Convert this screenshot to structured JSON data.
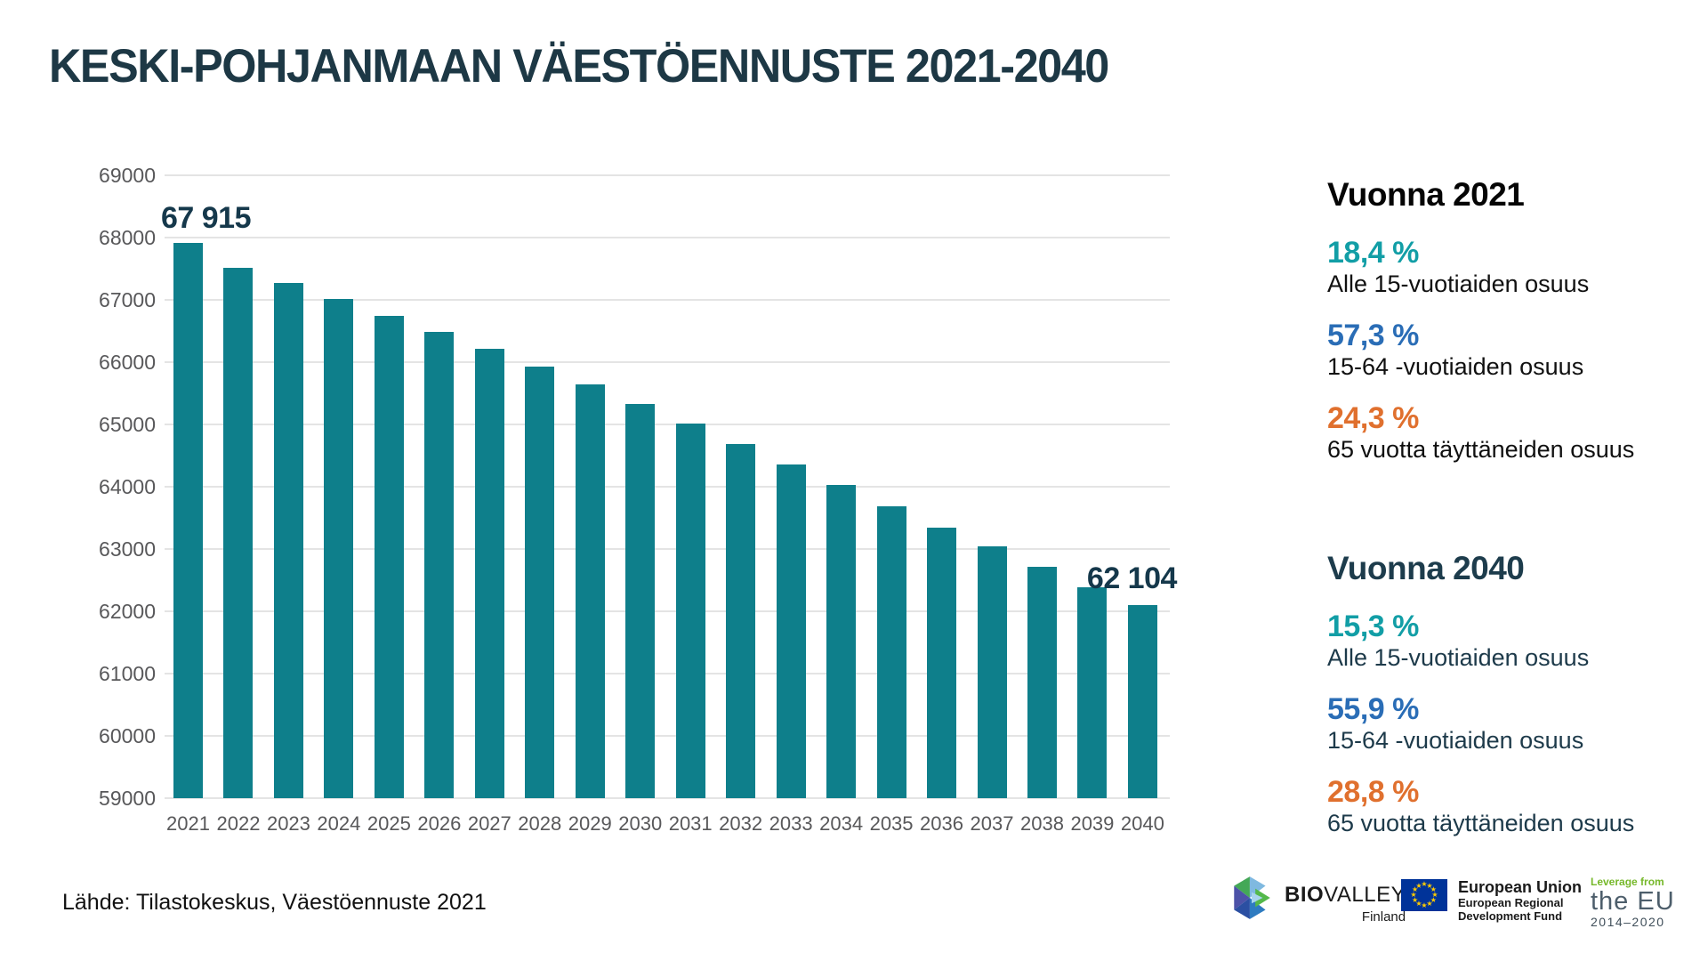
{
  "title": "KESKI-POHJANMAAN VÄESTÖENNUSTE 2021-2040",
  "source": "Lähde: Tilastokeskus, Väestöennuste 2021",
  "chart_data": {
    "type": "bar",
    "title": "KESKI-POHJANMAAN VÄESTÖENNUSTE 2021-2040",
    "categories": [
      "2021",
      "2022",
      "2023",
      "2024",
      "2025",
      "2026",
      "2027",
      "2028",
      "2029",
      "2030",
      "2031",
      "2032",
      "2033",
      "2034",
      "2035",
      "2036",
      "2037",
      "2038",
      "2039",
      "2040"
    ],
    "values": [
      67915,
      67520,
      67270,
      67020,
      66750,
      66480,
      66210,
      65930,
      65640,
      65330,
      65020,
      64690,
      64360,
      64030,
      63690,
      63350,
      63040,
      62720,
      62390,
      62104
    ],
    "xlabel": "",
    "ylabel": "",
    "ylim": [
      59000,
      69000
    ],
    "yticks": [
      69000,
      68000,
      67000,
      66000,
      65000,
      64000,
      63000,
      62000,
      61000,
      60000,
      59000
    ],
    "grid": true,
    "legend": "none",
    "bar_color": "#0e7f8b",
    "annotations": {
      "first_bar_label": "67 915",
      "last_bar_label": "62 104"
    }
  },
  "panels": [
    {
      "heading": "Vuonna 2021",
      "stats": [
        {
          "value": "18,4 %",
          "label": "Alle 15-vuotiaiden osuus",
          "color": "#129ea6"
        },
        {
          "value": "57,3 %",
          "label": "15-64 -vuotiaiden osuus",
          "color": "#2a6db6"
        },
        {
          "value": "24,3 %",
          "label": "65 vuotta täyttäneiden osuus",
          "color": "#e0702e"
        }
      ]
    },
    {
      "heading": "Vuonna 2040",
      "stats": [
        {
          "value": "15,3 %",
          "label": "Alle 15-vuotiaiden osuus",
          "color": "#129ea6"
        },
        {
          "value": "55,9 %",
          "label": "15-64 -vuotiaiden osuus",
          "color": "#2a6db6"
        },
        {
          "value": "28,8 %",
          "label": "65 vuotta täyttäneiden osuus",
          "color": "#e0702e"
        }
      ]
    }
  ],
  "footer": {
    "biovalley": {
      "bold": "BIO",
      "light": "VALLEY",
      "sub": "Finland"
    },
    "eu": {
      "title": "European Union",
      "line1": "European Regional",
      "line2": "Development Fund"
    },
    "leverage": {
      "top": "Leverage from",
      "mid": "the EU",
      "bottom": "2014–2020"
    }
  }
}
